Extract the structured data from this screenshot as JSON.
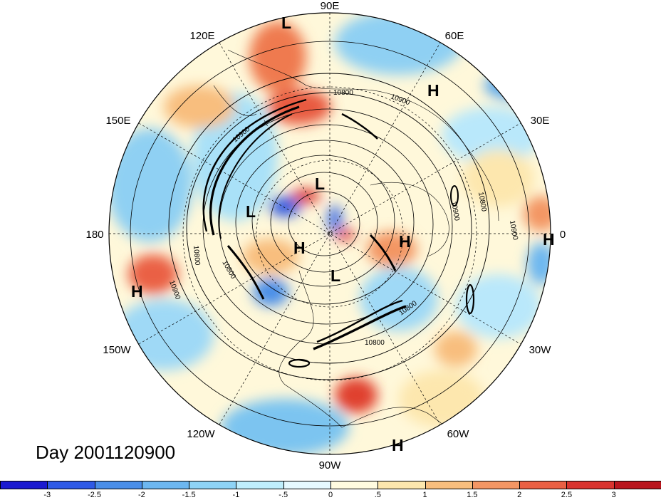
{
  "map": {
    "projection": "north-polar-stereographic",
    "longitude_labels": {
      "lon_0": "0",
      "lon_30e": "30E",
      "lon_60e": "60E",
      "lon_90e": "90E",
      "lon_120e": "120E",
      "lon_150e": "150E",
      "lon_180": "180",
      "lon_150w": "150W",
      "lon_120w": "120W",
      "lon_90w": "90W",
      "lon_60w": "60W",
      "lon_30w": "30W"
    },
    "pressure_marks": {
      "h_1": "H",
      "h_2": "H",
      "h_3": "H",
      "h_4": "H",
      "h_5": "H",
      "h_6": "H",
      "l_1": "L",
      "l_2": "L",
      "l_3": "L",
      "l_4": "L"
    },
    "contour_labels": {
      "c1": "10800",
      "c2": "10900",
      "c3": "10900",
      "c4": "10800",
      "c5": "10800",
      "c6": "10900",
      "c7": "10800",
      "c8": "10800",
      "c9": "10900",
      "c10": "10800",
      "c11": "10900"
    },
    "colors": {
      "ocean_ring": "#ffffff",
      "land_lines": "#000000",
      "grid_dash": "#000000"
    }
  },
  "day_label": "Day 2001120900",
  "colorbar": {
    "colors": [
      "#1c1bd0",
      "#2f5ae6",
      "#4a8ee8",
      "#6db7f0",
      "#8ed3f5",
      "#bfeefc",
      "#e6f9ff",
      "#fffbe0",
      "#fde7ae",
      "#f8be7e",
      "#f39664",
      "#ea6044",
      "#d9342f",
      "#b9151d"
    ],
    "ticks": [
      "-3",
      "-2.5",
      "-2",
      "-1.5",
      "-1",
      "-.5",
      "0",
      ".5",
      "1",
      "1.5",
      "2",
      "2.5",
      "3"
    ]
  }
}
